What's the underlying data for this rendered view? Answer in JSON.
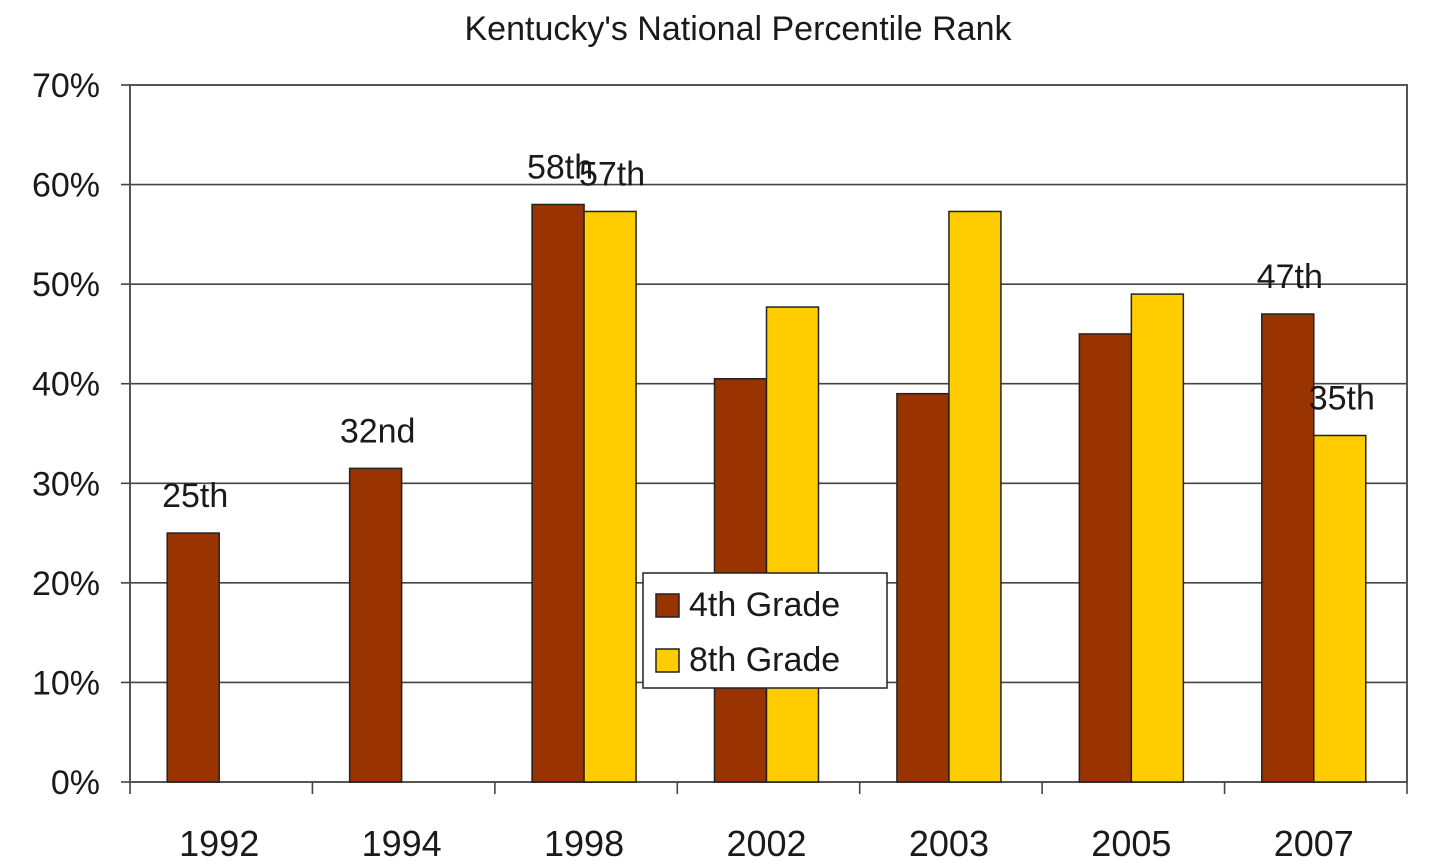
{
  "chart_data": {
    "type": "bar",
    "title": "Kentucky's National Percentile Rank",
    "xlabel": "",
    "ylabel": "",
    "categories": [
      "1992",
      "1994",
      "1998",
      "2002",
      "2003",
      "2005",
      "2007"
    ],
    "series": [
      {
        "name": "4th Grade",
        "color": "#993300",
        "values": [
          25,
          31.5,
          58,
          40.5,
          39,
          45,
          47
        ]
      },
      {
        "name": "8th Grade",
        "color": "#ffcc00",
        "values": [
          null,
          null,
          57.3,
          47.7,
          57.3,
          49,
          34.8
        ]
      }
    ],
    "data_labels": [
      {
        "category": "1992",
        "series": "4th Grade",
        "text": "25th"
      },
      {
        "category": "1994",
        "series": "4th Grade",
        "text": "32nd"
      },
      {
        "category": "1998",
        "series": "4th Grade",
        "text": "58th"
      },
      {
        "category": "1998",
        "series": "8th Grade",
        "text": "57th"
      },
      {
        "category": "2007",
        "series": "4th Grade",
        "text": "47th"
      },
      {
        "category": "2007",
        "series": "8th Grade",
        "text": "35th"
      }
    ],
    "ylim": [
      0,
      70
    ],
    "yticks": [
      "0%",
      "10%",
      "20%",
      "30%",
      "40%",
      "50%",
      "60%",
      "70%"
    ],
    "grid": true,
    "legend_position": "center"
  }
}
